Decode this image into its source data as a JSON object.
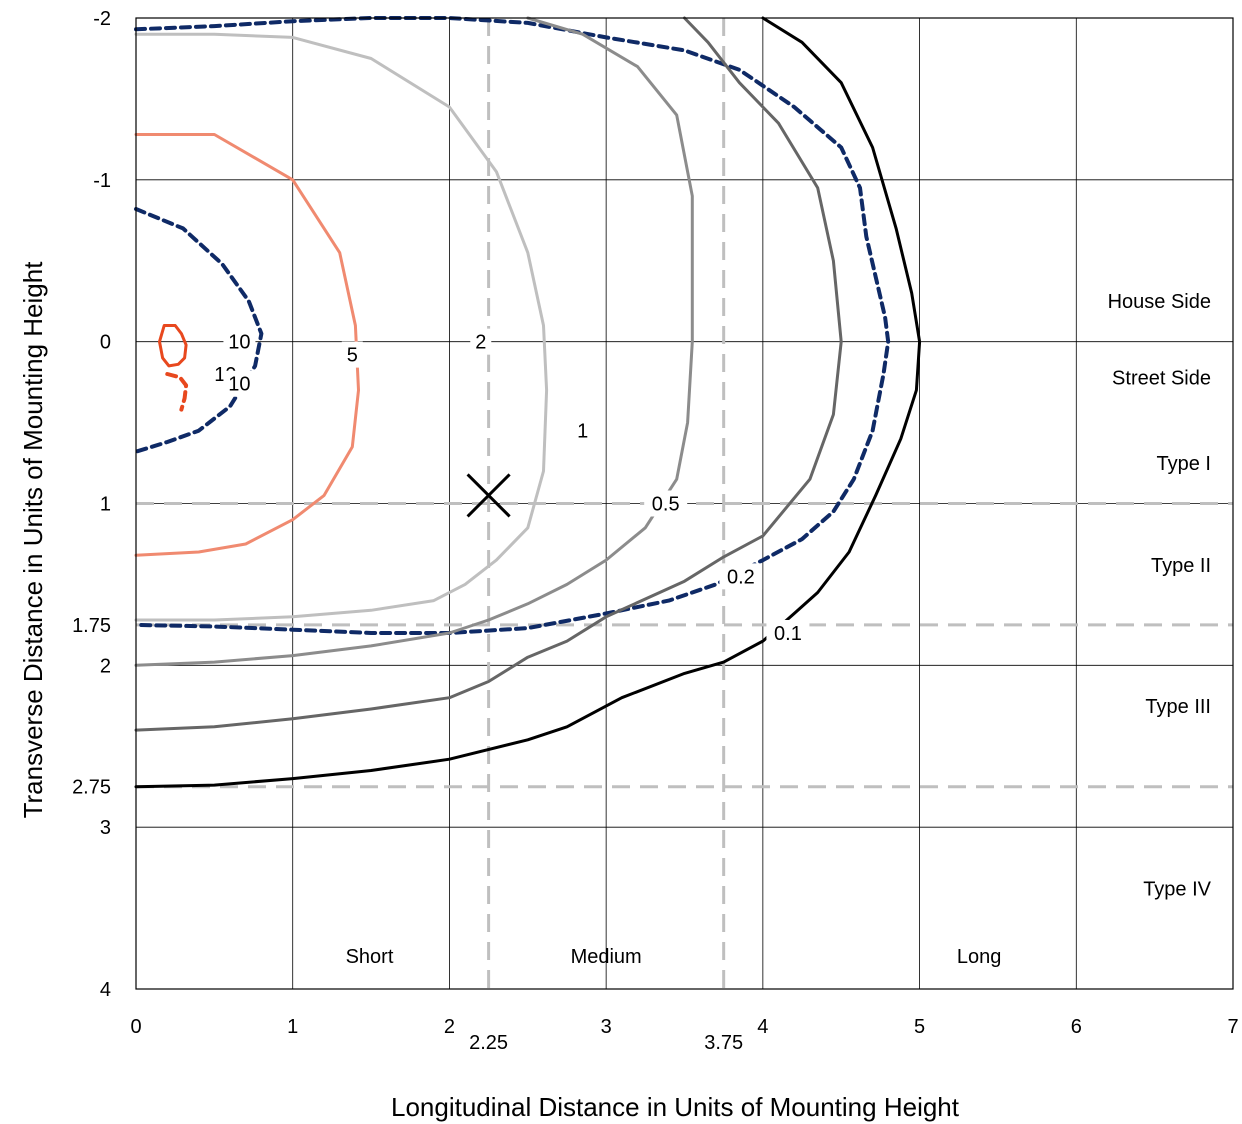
{
  "chart_data": {
    "type": "contour",
    "xlabel": "Longitudinal Distance in Units of Mounting Height",
    "ylabel": "Transverse Distance in Units of Mounting Height",
    "xlim": [
      0,
      7
    ],
    "ylim": [
      -2,
      4
    ],
    "y_inverted": true,
    "grid": true,
    "x_ticks": [
      "0",
      "1",
      "2",
      "3",
      "4",
      "5",
      "6",
      "7"
    ],
    "x_extra_ticks": [
      {
        "value": 2.25,
        "label": "2.25"
      },
      {
        "value": 3.75,
        "label": "3.75"
      }
    ],
    "y_ticks": [
      "-2",
      "-1",
      "0",
      "1",
      "2",
      "3",
      "4"
    ],
    "y_extra_ticks": [
      {
        "value": 1.75,
        "label": "1.75"
      },
      {
        "value": 2.75,
        "label": "2.75"
      }
    ],
    "reference_lines": {
      "vertical": [
        2.25,
        3.75
      ],
      "horizontal": [
        1,
        1.75,
        2.75
      ],
      "color": "#bfbfbf"
    },
    "regions": {
      "transverse": [
        {
          "label": "House Side",
          "y": -0.25
        },
        {
          "label": "Street Side",
          "y": 0.22
        },
        {
          "label": "Type I",
          "y": 0.75
        },
        {
          "label": "Type II",
          "y": 1.38
        },
        {
          "label": "Type III",
          "y": 2.25
        },
        {
          "label": "Type IV",
          "y": 3.38
        }
      ],
      "longitudinal": [
        {
          "label": "Short",
          "x": 1.49
        },
        {
          "label": "Medium",
          "x": 3.0
        },
        {
          "label": "Long",
          "x": 5.38
        }
      ]
    },
    "marker": {
      "symbol": "×",
      "x": 2.25,
      "y": 0.95
    },
    "series": [
      {
        "name": "0.1",
        "color": "#000000",
        "dashed": false,
        "label_at": [
          4.16,
          1.8
        ],
        "points": [
          [
            4.0,
            -2.0
          ],
          [
            4.25,
            -1.85
          ],
          [
            4.5,
            -1.6
          ],
          [
            4.7,
            -1.2
          ],
          [
            4.85,
            -0.7
          ],
          [
            4.95,
            -0.3
          ],
          [
            5.0,
            0.0
          ],
          [
            4.98,
            0.3
          ],
          [
            4.88,
            0.6
          ],
          [
            4.72,
            0.95
          ],
          [
            4.55,
            1.3
          ],
          [
            4.35,
            1.55
          ],
          [
            4.2,
            1.68
          ],
          [
            4.0,
            1.85
          ],
          [
            3.75,
            1.98
          ],
          [
            3.5,
            2.05
          ],
          [
            3.1,
            2.2
          ],
          [
            2.75,
            2.38
          ],
          [
            2.5,
            2.46
          ],
          [
            2.0,
            2.58
          ],
          [
            1.5,
            2.65
          ],
          [
            1.0,
            2.7
          ],
          [
            0.5,
            2.74
          ],
          [
            0.0,
            2.75
          ]
        ]
      },
      {
        "name": "0.2",
        "color": "#0f2a66",
        "dashed": true,
        "label_at": [
          3.86,
          1.45
        ],
        "points": [
          [
            0.0,
            -1.93
          ],
          [
            0.5,
            -1.95
          ],
          [
            1.0,
            -1.98
          ],
          [
            1.5,
            -2.0
          ],
          [
            2.0,
            -2.0
          ],
          [
            2.5,
            -1.97
          ],
          [
            3.0,
            -1.88
          ],
          [
            3.5,
            -1.8
          ],
          [
            3.85,
            -1.68
          ],
          [
            4.2,
            -1.45
          ],
          [
            4.5,
            -1.2
          ],
          [
            4.62,
            -0.95
          ],
          [
            4.66,
            -0.65
          ],
          [
            4.72,
            -0.4
          ],
          [
            4.78,
            -0.15
          ],
          [
            4.8,
            0.0
          ],
          [
            4.77,
            0.2
          ],
          [
            4.7,
            0.55
          ],
          [
            4.58,
            0.85
          ],
          [
            4.45,
            1.05
          ],
          [
            4.25,
            1.22
          ],
          [
            4.0,
            1.35
          ],
          [
            3.7,
            1.5
          ],
          [
            3.4,
            1.6
          ],
          [
            3.0,
            1.68
          ],
          [
            2.5,
            1.77
          ],
          [
            2.0,
            1.8
          ],
          [
            1.5,
            1.8
          ],
          [
            1.0,
            1.78
          ],
          [
            0.5,
            1.76
          ],
          [
            0.0,
            1.75
          ]
        ]
      },
      {
        "name": "0.5",
        "color": "#666666",
        "dashed": false,
        "label_at": [
          3.38,
          1.0
        ],
        "points": [
          [
            3.5,
            -2.0
          ],
          [
            3.65,
            -1.85
          ],
          [
            3.85,
            -1.6
          ],
          [
            4.1,
            -1.35
          ],
          [
            4.35,
            -0.95
          ],
          [
            4.45,
            -0.5
          ],
          [
            4.5,
            0.0
          ],
          [
            4.45,
            0.45
          ],
          [
            4.3,
            0.85
          ],
          [
            4.0,
            1.2
          ],
          [
            3.75,
            1.33
          ],
          [
            3.5,
            1.48
          ],
          [
            3.0,
            1.7
          ],
          [
            2.75,
            1.85
          ],
          [
            2.5,
            1.95
          ],
          [
            2.25,
            2.1
          ],
          [
            2.0,
            2.2
          ],
          [
            1.5,
            2.27
          ],
          [
            1.0,
            2.33
          ],
          [
            0.5,
            2.38
          ],
          [
            0.0,
            2.4
          ]
        ]
      },
      {
        "name": "1",
        "color": "#8c8c8c",
        "dashed": false,
        "label_at": [
          2.85,
          0.55
        ],
        "points": [
          [
            2.5,
            -2.0
          ],
          [
            2.85,
            -1.9
          ],
          [
            3.2,
            -1.7
          ],
          [
            3.45,
            -1.4
          ],
          [
            3.55,
            -0.9
          ],
          [
            3.55,
            -0.4
          ],
          [
            3.55,
            0.0
          ],
          [
            3.52,
            0.5
          ],
          [
            3.45,
            0.85
          ],
          [
            3.25,
            1.15
          ],
          [
            3.0,
            1.35
          ],
          [
            2.75,
            1.5
          ],
          [
            2.5,
            1.62
          ],
          [
            2.25,
            1.72
          ],
          [
            2.0,
            1.8
          ],
          [
            1.5,
            1.88
          ],
          [
            1.0,
            1.94
          ],
          [
            0.5,
            1.98
          ],
          [
            0.0,
            2.0
          ]
        ]
      },
      {
        "name": "2",
        "color": "#bfbfbf",
        "dashed": false,
        "label_at": [
          2.2,
          0.0
        ],
        "points": [
          [
            0.0,
            -1.9
          ],
          [
            0.5,
            -1.9
          ],
          [
            1.0,
            -1.88
          ],
          [
            1.5,
            -1.75
          ],
          [
            2.0,
            -1.45
          ],
          [
            2.3,
            -1.05
          ],
          [
            2.5,
            -0.55
          ],
          [
            2.6,
            -0.1
          ],
          [
            2.62,
            0.3
          ],
          [
            2.6,
            0.8
          ],
          [
            2.5,
            1.15
          ],
          [
            2.3,
            1.35
          ],
          [
            2.1,
            1.5
          ],
          [
            1.9,
            1.6
          ],
          [
            1.5,
            1.66
          ],
          [
            1.0,
            1.7
          ],
          [
            0.5,
            1.72
          ],
          [
            0.0,
            1.72
          ]
        ]
      },
      {
        "name": "5",
        "color": "#f08a70",
        "dashed": false,
        "label_at": [
          1.38,
          0.08
        ],
        "points": [
          [
            0.0,
            -1.28
          ],
          [
            0.5,
            -1.28
          ],
          [
            1.0,
            -1.0
          ],
          [
            1.3,
            -0.55
          ],
          [
            1.4,
            -0.1
          ],
          [
            1.42,
            0.3
          ],
          [
            1.38,
            0.65
          ],
          [
            1.2,
            0.95
          ],
          [
            1.0,
            1.1
          ],
          [
            0.7,
            1.25
          ],
          [
            0.4,
            1.3
          ],
          [
            0.0,
            1.32
          ]
        ]
      },
      {
        "name": "10",
        "color": "#0f2a66",
        "dashed": true,
        "label_at": [
          0.66,
          0.0
        ],
        "points": [
          [
            0.0,
            -0.82
          ],
          [
            0.3,
            -0.7
          ],
          [
            0.55,
            -0.48
          ],
          [
            0.72,
            -0.25
          ],
          [
            0.8,
            -0.05
          ],
          [
            0.76,
            0.15
          ],
          [
            0.6,
            0.4
          ],
          [
            0.4,
            0.55
          ],
          [
            0.2,
            0.62
          ],
          [
            0.0,
            0.68
          ]
        ]
      },
      {
        "name": "10",
        "color": "#e8481e",
        "dashed": false,
        "label_at": [
          0.57,
          0.2
        ],
        "closed": true,
        "points": [
          [
            0.18,
            -0.1
          ],
          [
            0.25,
            -0.1
          ],
          [
            0.29,
            -0.05
          ],
          [
            0.32,
            0.02
          ],
          [
            0.31,
            0.1
          ],
          [
            0.27,
            0.14
          ],
          [
            0.21,
            0.15
          ],
          [
            0.17,
            0.1
          ],
          [
            0.15,
            0.0
          ]
        ]
      },
      {
        "name": "10",
        "color": "#e8481e",
        "dashed": true,
        "label_at": [
          0.66,
          0.26
        ],
        "points": [
          [
            0.2,
            0.2
          ],
          [
            0.28,
            0.22
          ],
          [
            0.32,
            0.27
          ],
          [
            0.31,
            0.35
          ],
          [
            0.29,
            0.42
          ]
        ]
      }
    ]
  }
}
